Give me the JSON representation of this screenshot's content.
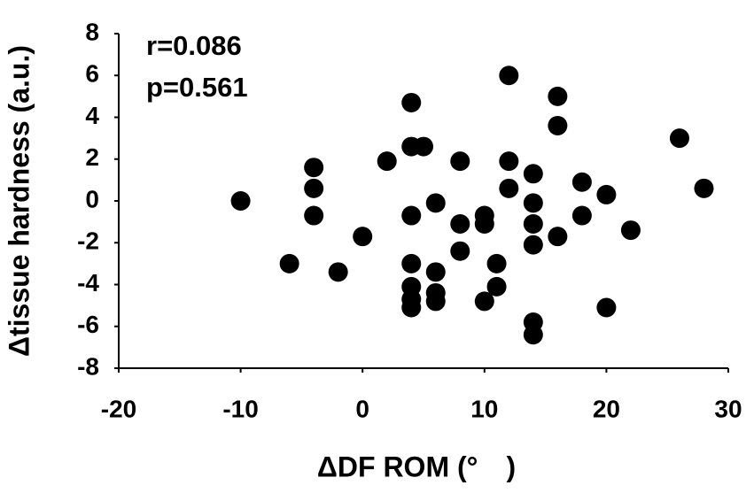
{
  "chart_data": {
    "type": "scatter",
    "xlabel": "ΔDF ROM (°　)",
    "ylabel": "Δtissue hardness (a.u.)",
    "annotations": [
      "r=0.086",
      "p=0.561"
    ],
    "color": "#000000",
    "xlim": [
      -20,
      30
    ],
    "xticks": [
      -20,
      -10,
      0,
      10,
      20,
      30
    ],
    "ylim": [
      -8,
      8
    ],
    "yticks": [
      -8,
      -6,
      -4,
      -2,
      0,
      2,
      4,
      6,
      8
    ],
    "grid": false,
    "x": [
      -10,
      -6,
      -4,
      -4,
      -4,
      -2,
      0,
      2,
      4,
      4,
      5,
      4,
      4,
      4,
      4,
      4,
      6,
      6,
      6,
      6,
      8,
      8,
      8,
      10,
      10,
      10,
      11,
      11,
      12,
      12,
      12,
      14,
      14,
      14,
      14,
      14,
      14,
      16,
      16,
      16,
      18,
      18,
      20,
      20,
      22,
      26,
      28
    ],
    "values": [
      0,
      -3,
      1.6,
      0.6,
      -0.7,
      -3.4,
      -1.7,
      1.9,
      4.7,
      2.6,
      2.6,
      -0.7,
      -3,
      -4.1,
      -4.7,
      -5.1,
      -0.1,
      -3.4,
      -4.4,
      -4.8,
      1.9,
      -1.1,
      -2.4,
      -0.7,
      -1.1,
      -4.8,
      -3,
      -4.1,
      6,
      1.9,
      0.6,
      1.3,
      -0.1,
      -1.1,
      -2.1,
      -5.8,
      -6.4,
      5,
      3.6,
      -1.7,
      0.9,
      -0.7,
      0.3,
      -5.1,
      -1.4,
      3,
      0.6
    ]
  }
}
